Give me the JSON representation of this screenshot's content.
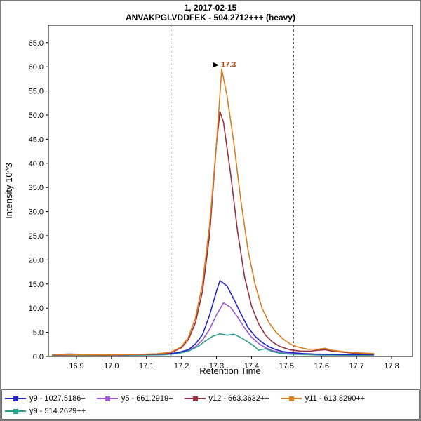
{
  "chart_data": {
    "type": "line",
    "title_line1": "1, 2017-02-15",
    "title_line2": "ANVAKPGLVDDFEK - 504.2712+++ (heavy)",
    "xlabel": "Retention Time",
    "ylabel": "Intensity 10^3",
    "xlim": [
      16.82,
      17.86
    ],
    "ylim": [
      0,
      68.6
    ],
    "x_ticks": [
      "16.9",
      "17.0",
      "17.1",
      "17.2",
      "17.3",
      "17.4",
      "17.5",
      "17.6",
      "17.7",
      "17.8"
    ],
    "y_ticks": [
      "0.0",
      "5.0",
      "10.0",
      "15.0",
      "20.0",
      "25.0",
      "30.0",
      "35.0",
      "40.0",
      "45.0",
      "50.0",
      "55.0",
      "60.0",
      "65.0"
    ],
    "integration_boundaries": [
      17.17,
      17.52
    ],
    "peak_annotation": {
      "label": "17.3",
      "x": 17.315,
      "y": 59.5,
      "color": "#bf4300"
    },
    "legend_position": "bottom",
    "grid": false,
    "draw_order": [
      1,
      4,
      0,
      2,
      3
    ],
    "series": [
      {
        "name": "y9 - 1027.5186+",
        "color": "#2323cb",
        "points": [
          [
            16.83,
            0.4
          ],
          [
            16.88,
            0.5
          ],
          [
            16.92,
            0.45
          ],
          [
            17.0,
            0.4
          ],
          [
            17.06,
            0.4
          ],
          [
            17.12,
            0.45
          ],
          [
            17.16,
            0.55
          ],
          [
            17.19,
            0.8
          ],
          [
            17.22,
            1.4
          ],
          [
            17.24,
            2.6
          ],
          [
            17.26,
            4.5
          ],
          [
            17.28,
            8.5
          ],
          [
            17.3,
            13.5
          ],
          [
            17.31,
            15.7
          ],
          [
            17.33,
            14.6
          ],
          [
            17.35,
            11.8
          ],
          [
            17.37,
            8.8
          ],
          [
            17.39,
            6.0
          ],
          [
            17.41,
            4.2
          ],
          [
            17.43,
            2.9
          ],
          [
            17.45,
            2.0
          ],
          [
            17.47,
            1.4
          ],
          [
            17.49,
            1.0
          ],
          [
            17.52,
            0.75
          ],
          [
            17.55,
            0.6
          ],
          [
            17.58,
            0.5
          ],
          [
            17.62,
            0.45
          ],
          [
            17.66,
            0.4
          ],
          [
            17.7,
            0.4
          ],
          [
            17.75,
            0.4
          ]
        ]
      },
      {
        "name": "y5 - 661.2919+",
        "color": "#9b59d0",
        "points": [
          [
            16.83,
            0.3
          ],
          [
            16.9,
            0.35
          ],
          [
            17.0,
            0.3
          ],
          [
            17.08,
            0.32
          ],
          [
            17.14,
            0.38
          ],
          [
            17.18,
            0.6
          ],
          [
            17.21,
            1.0
          ],
          [
            17.24,
            2.0
          ],
          [
            17.26,
            3.4
          ],
          [
            17.28,
            5.6
          ],
          [
            17.3,
            8.6
          ],
          [
            17.32,
            11.1
          ],
          [
            17.34,
            10.2
          ],
          [
            17.36,
            8.2
          ],
          [
            17.38,
            5.9
          ],
          [
            17.4,
            4.0
          ],
          [
            17.42,
            2.7
          ],
          [
            17.44,
            1.8
          ],
          [
            17.46,
            1.2
          ],
          [
            17.48,
            0.9
          ],
          [
            17.51,
            0.65
          ],
          [
            17.55,
            0.5
          ],
          [
            17.59,
            0.4
          ],
          [
            17.63,
            0.35
          ],
          [
            17.68,
            0.3
          ],
          [
            17.73,
            0.3
          ]
        ]
      },
      {
        "name": "y12 - 663.3632++",
        "color": "#963040",
        "points": [
          [
            16.83,
            0.3
          ],
          [
            16.9,
            0.35
          ],
          [
            17.0,
            0.3
          ],
          [
            17.08,
            0.4
          ],
          [
            17.13,
            0.5
          ],
          [
            17.17,
            0.8
          ],
          [
            17.2,
            1.8
          ],
          [
            17.22,
            3.5
          ],
          [
            17.24,
            7.0
          ],
          [
            17.26,
            13.5
          ],
          [
            17.28,
            25.0
          ],
          [
            17.3,
            44.0
          ],
          [
            17.31,
            50.7
          ],
          [
            17.32,
            48.5
          ],
          [
            17.34,
            38.0
          ],
          [
            17.36,
            26.0
          ],
          [
            17.38,
            16.5
          ],
          [
            17.4,
            10.5
          ],
          [
            17.42,
            6.8
          ],
          [
            17.44,
            4.4
          ],
          [
            17.46,
            3.0
          ],
          [
            17.48,
            2.1
          ],
          [
            17.51,
            1.4
          ],
          [
            17.54,
            1.1
          ],
          [
            17.57,
            1.1
          ],
          [
            17.59,
            1.3
          ],
          [
            17.61,
            1.4
          ],
          [
            17.63,
            1.1
          ],
          [
            17.66,
            0.9
          ],
          [
            17.69,
            0.7
          ],
          [
            17.72,
            0.6
          ],
          [
            17.75,
            0.5
          ]
        ]
      },
      {
        "name": "y11 - 613.8290++",
        "color": "#db7c1f",
        "points": [
          [
            16.83,
            0.35
          ],
          [
            16.9,
            0.4
          ],
          [
            17.0,
            0.35
          ],
          [
            17.08,
            0.45
          ],
          [
            17.13,
            0.55
          ],
          [
            17.17,
            0.9
          ],
          [
            17.2,
            2.0
          ],
          [
            17.22,
            4.0
          ],
          [
            17.24,
            8.0
          ],
          [
            17.26,
            15.0
          ],
          [
            17.28,
            27.0
          ],
          [
            17.3,
            44.0
          ],
          [
            17.315,
            59.5
          ],
          [
            17.33,
            54.0
          ],
          [
            17.35,
            44.0
          ],
          [
            17.37,
            32.0
          ],
          [
            17.39,
            22.0
          ],
          [
            17.41,
            15.0
          ],
          [
            17.43,
            10.0
          ],
          [
            17.45,
            7.0
          ],
          [
            17.47,
            5.0
          ],
          [
            17.49,
            3.6
          ],
          [
            17.51,
            2.6
          ],
          [
            17.53,
            2.0
          ],
          [
            17.56,
            1.5
          ],
          [
            17.59,
            1.5
          ],
          [
            17.61,
            1.7
          ],
          [
            17.63,
            1.3
          ],
          [
            17.66,
            1.0
          ],
          [
            17.69,
            0.8
          ],
          [
            17.72,
            0.7
          ],
          [
            17.75,
            0.6
          ]
        ]
      },
      {
        "name": "y9 - 514.2629++",
        "color": "#2f9e8f",
        "points": [
          [
            16.83,
            0.25
          ],
          [
            16.9,
            0.3
          ],
          [
            17.0,
            0.25
          ],
          [
            17.1,
            0.3
          ],
          [
            17.15,
            0.35
          ],
          [
            17.19,
            0.6
          ],
          [
            17.22,
            1.1
          ],
          [
            17.25,
            2.2
          ],
          [
            17.27,
            3.3
          ],
          [
            17.29,
            4.2
          ],
          [
            17.31,
            4.7
          ],
          [
            17.33,
            4.4
          ],
          [
            17.35,
            4.6
          ],
          [
            17.37,
            3.9
          ],
          [
            17.39,
            3.0
          ],
          [
            17.41,
            2.0
          ],
          [
            17.42,
            1.3
          ],
          [
            17.44,
            1.6
          ],
          [
            17.46,
            1.0
          ],
          [
            17.48,
            0.7
          ],
          [
            17.51,
            0.5
          ],
          [
            17.55,
            0.4
          ],
          [
            17.59,
            0.3
          ],
          [
            17.64,
            0.28
          ],
          [
            17.7,
            0.25
          ],
          [
            17.75,
            0.25
          ]
        ]
      }
    ]
  }
}
